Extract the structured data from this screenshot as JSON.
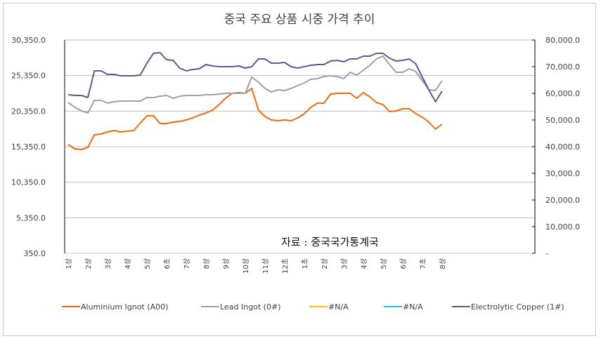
{
  "chart_data": {
    "type": "line",
    "title": "중국 주요 상품 시중 가격 추이",
    "source_note": "자료 : 중국국가통계국",
    "xlabel": "",
    "ylabel": "",
    "y_left": {
      "range": [
        350,
        30350
      ],
      "ticks": [
        350,
        5350,
        10350,
        15350,
        20350,
        25350,
        30350
      ],
      "tick_labels": [
        "350.0",
        "5,350.0",
        "10,350.0",
        "15,350.0",
        "20,350.0",
        "25,350.0",
        "30,350.0"
      ]
    },
    "y_right": {
      "range": [
        0,
        80000
      ],
      "ticks": [
        0,
        10000,
        20000,
        30000,
        40000,
        50000,
        60000,
        70000,
        80000
      ],
      "tick_labels": [
        "-",
        "10,000.0",
        "20,000.0",
        "30,000.0",
        "40,000.0",
        "50,000.0",
        "60,000.0",
        "70,000.0",
        "80,000.0"
      ]
    },
    "grid": true,
    "legend_position": "bottom",
    "category_labels": [
      "1상",
      "2상",
      "3상",
      "4상",
      "5상",
      "6초",
      "7상",
      "8상",
      "9상",
      "10상",
      "11상",
      "12초",
      "1초",
      "2상",
      "3상",
      "4상",
      "5상",
      "6상",
      "7초",
      "8상"
    ],
    "points_per_label": 3,
    "series": [
      {
        "name": "Aluminium Ignot (A00)",
        "axis": "left",
        "color": "#f26a0d",
        "values": [
          15650,
          15050,
          14950,
          15250,
          17030,
          17130,
          17420,
          17620,
          17420,
          17520,
          17620,
          18700,
          19690,
          19690,
          18610,
          18610,
          18800,
          18900,
          19100,
          19400,
          19790,
          20090,
          20480,
          21270,
          22160,
          22850,
          22950,
          22850,
          23540,
          20480,
          19590,
          19100,
          19000,
          19100,
          19000,
          19400,
          19990,
          20880,
          21470,
          21470,
          22750,
          22850,
          22850,
          22850,
          22160,
          22950,
          22360,
          21570,
          21270,
          20280,
          20380,
          20680,
          20680,
          19990,
          19490,
          18800,
          17820,
          18510
        ]
      },
      {
        "name": "Lead Ingot (0#)",
        "axis": "left",
        "color": "#a0a0a0",
        "values": [
          21570,
          20880,
          20380,
          20090,
          21860,
          21860,
          21470,
          21670,
          21760,
          21760,
          21760,
          21760,
          22260,
          22260,
          22450,
          22550,
          22160,
          22450,
          22550,
          22550,
          22550,
          22650,
          22650,
          22750,
          22850,
          22850,
          22850,
          22850,
          25120,
          24430,
          23540,
          23050,
          23340,
          23240,
          23540,
          23940,
          24330,
          24820,
          24920,
          25220,
          25320,
          25220,
          24920,
          25810,
          25420,
          26110,
          26800,
          27690,
          28080,
          26900,
          25810,
          25810,
          26300,
          25910,
          24630,
          23340,
          23240,
          24630
        ]
      },
      {
        "name": "#N/A",
        "axis": "left",
        "color": "#ffc000",
        "values": []
      },
      {
        "name": "#N/A",
        "axis": "left",
        "color": "#2ec6d6",
        "values": []
      },
      {
        "name": "Electrolytic Copper (1#)",
        "axis": "right",
        "color": "#5b5a8f",
        "values": [
          59470,
          59210,
          59210,
          58420,
          68420,
          68420,
          67110,
          67110,
          66580,
          66580,
          66580,
          66840,
          71320,
          75000,
          75260,
          72630,
          72370,
          69470,
          68420,
          68950,
          69210,
          70790,
          70260,
          70000,
          70000,
          70000,
          70260,
          69470,
          70000,
          72900,
          72900,
          71320,
          71320,
          71580,
          70000,
          69470,
          70000,
          70530,
          70790,
          70790,
          72110,
          72370,
          71840,
          72900,
          72900,
          73950,
          73950,
          75000,
          75000,
          73160,
          72110,
          72370,
          72900,
          71050,
          66050,
          61320,
          56840,
          60790
        ]
      }
    ]
  }
}
